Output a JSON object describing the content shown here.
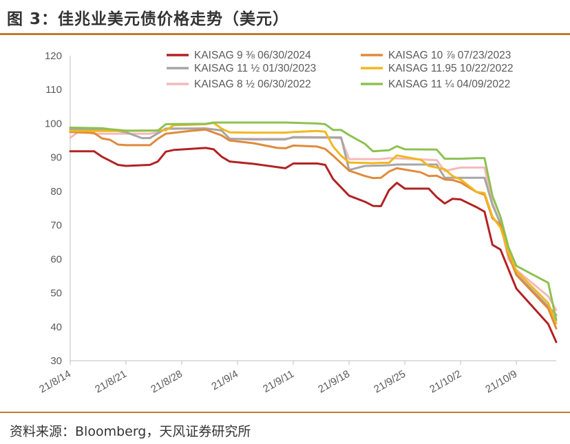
{
  "header": {
    "title": "图 3：佳兆业美元债价格走势（美元）"
  },
  "footer": {
    "source": "资料来源：Bloomberg，天风证券研究所"
  },
  "chart_data": {
    "type": "line",
    "title": "图 3：佳兆业美元债价格走势（美元）",
    "xlabel": "",
    "ylabel": "",
    "ylim": [
      30,
      120
    ],
    "yticks": [
      30,
      40,
      50,
      60,
      70,
      80,
      90,
      100,
      110,
      120
    ],
    "xlim": [
      "2021-08-14",
      "2021-10-14"
    ],
    "xtick_labels": [
      "21/8/14",
      "21/8/21",
      "21/8/28",
      "21/9/4",
      "21/9/11",
      "21/9/18",
      "21/9/25",
      "21/10/2",
      "21/10/9"
    ],
    "xtick_dates": [
      "2021-08-14",
      "2021-08-21",
      "2021-08-28",
      "2021-09-04",
      "2021-09-11",
      "2021-09-18",
      "2021-09-25",
      "2021-10-02",
      "2021-10-09"
    ],
    "grid": false,
    "legend": "top",
    "series": [
      {
        "name": "KAISAG 9 ⅜ 06/30/2024",
        "color": "#b22222",
        "points": [
          [
            "2021-08-14",
            91.8
          ],
          [
            "2021-08-17",
            91.8
          ],
          [
            "2021-08-18",
            90.2
          ],
          [
            "2021-08-20",
            87.8
          ],
          [
            "2021-08-21",
            87.5
          ],
          [
            "2021-08-24",
            87.8
          ],
          [
            "2021-08-25",
            88.8
          ],
          [
            "2021-08-26",
            91.7
          ],
          [
            "2021-08-27",
            92.2
          ],
          [
            "2021-08-31",
            92.8
          ],
          [
            "2021-09-01",
            92.4
          ],
          [
            "2021-09-02",
            90.2
          ],
          [
            "2021-09-03",
            88.8
          ],
          [
            "2021-09-06",
            88.1
          ],
          [
            "2021-09-10",
            86.8
          ],
          [
            "2021-09-11",
            88.2
          ],
          [
            "2021-09-14",
            88.2
          ],
          [
            "2021-09-15",
            87.8
          ],
          [
            "2021-09-16",
            83.6
          ],
          [
            "2021-09-18",
            78.7
          ],
          [
            "2021-09-20",
            76.9
          ],
          [
            "2021-09-21",
            75.7
          ],
          [
            "2021-09-22",
            75.6
          ],
          [
            "2021-09-23",
            80.3
          ],
          [
            "2021-09-24",
            82.5
          ],
          [
            "2021-09-25",
            80.8
          ],
          [
            "2021-09-28",
            80.8
          ],
          [
            "2021-09-29",
            78.3
          ],
          [
            "2021-09-30",
            76.4
          ],
          [
            "2021-10-01",
            77.8
          ],
          [
            "2021-10-02",
            77.6
          ],
          [
            "2021-10-04",
            75.3
          ],
          [
            "2021-10-05",
            74.0
          ],
          [
            "2021-10-06",
            64.2
          ],
          [
            "2021-10-07",
            62.8
          ],
          [
            "2021-10-08",
            57.0
          ],
          [
            "2021-10-09",
            51.3
          ],
          [
            "2021-10-13",
            40.8
          ],
          [
            "2021-10-14",
            35.5
          ]
        ]
      },
      {
        "name": "KAISAG 10 ⅞ 07/23/2023",
        "color": "#e08a3c",
        "points": [
          [
            "2021-08-14",
            97.5
          ],
          [
            "2021-08-17",
            97.2
          ],
          [
            "2021-08-18",
            95.6
          ],
          [
            "2021-08-19",
            95.2
          ],
          [
            "2021-08-20",
            93.8
          ],
          [
            "2021-08-21",
            93.6
          ],
          [
            "2021-08-24",
            93.6
          ],
          [
            "2021-08-25",
            95.5
          ],
          [
            "2021-08-26",
            97.0
          ],
          [
            "2021-08-29",
            97.8
          ],
          [
            "2021-08-31",
            98.2
          ],
          [
            "2021-09-02",
            96.5
          ],
          [
            "2021-09-03",
            95.0
          ],
          [
            "2021-09-06",
            94.2
          ],
          [
            "2021-09-09",
            92.8
          ],
          [
            "2021-09-10",
            92.7
          ],
          [
            "2021-09-11",
            93.5
          ],
          [
            "2021-09-14",
            93.2
          ],
          [
            "2021-09-15",
            92.5
          ],
          [
            "2021-09-16",
            90.5
          ],
          [
            "2021-09-18",
            86.1
          ],
          [
            "2021-09-20",
            84.5
          ],
          [
            "2021-09-21",
            83.9
          ],
          [
            "2021-09-22",
            84.0
          ],
          [
            "2021-09-23",
            85.8
          ],
          [
            "2021-09-24",
            86.8
          ],
          [
            "2021-09-27",
            85.6
          ],
          [
            "2021-09-28",
            84.5
          ],
          [
            "2021-09-29",
            84.6
          ],
          [
            "2021-09-30",
            83.5
          ],
          [
            "2021-10-01",
            83.3
          ],
          [
            "2021-10-02",
            82.6
          ],
          [
            "2021-10-04",
            79.8
          ],
          [
            "2021-10-05",
            79.0
          ],
          [
            "2021-10-06",
            72.0
          ],
          [
            "2021-10-07",
            70.2
          ],
          [
            "2021-10-08",
            61.2
          ],
          [
            "2021-10-09",
            55.3
          ],
          [
            "2021-10-13",
            45.4
          ],
          [
            "2021-10-14",
            39.5
          ]
        ]
      },
      {
        "name": "KAISAG 11 ½ 01/30/2023",
        "color": "#a6a6a6",
        "points": [
          [
            "2021-08-14",
            98.3
          ],
          [
            "2021-08-17",
            98.3
          ],
          [
            "2021-08-20",
            97.8
          ],
          [
            "2021-08-21",
            97.4
          ],
          [
            "2021-08-23",
            95.7
          ],
          [
            "2021-08-24",
            95.7
          ],
          [
            "2021-08-26",
            98.5
          ],
          [
            "2021-08-31",
            98.5
          ],
          [
            "2021-09-02",
            98.0
          ],
          [
            "2021-09-03",
            95.5
          ],
          [
            "2021-09-06",
            95.3
          ],
          [
            "2021-09-10",
            95.3
          ],
          [
            "2021-09-11",
            96.0
          ],
          [
            "2021-09-16",
            95.9
          ],
          [
            "2021-09-17",
            95.9
          ],
          [
            "2021-09-18",
            86.3
          ],
          [
            "2021-09-20",
            87.5
          ],
          [
            "2021-09-22",
            87.6
          ],
          [
            "2021-09-23",
            87.7
          ],
          [
            "2021-09-24",
            87.9
          ],
          [
            "2021-09-29",
            87.9
          ],
          [
            "2021-09-30",
            84.0
          ],
          [
            "2021-10-02",
            84.0
          ],
          [
            "2021-10-05",
            84.0
          ],
          [
            "2021-10-06",
            76.0
          ],
          [
            "2021-10-07",
            70.5
          ],
          [
            "2021-10-08",
            61.5
          ],
          [
            "2021-10-09",
            55.6
          ],
          [
            "2021-10-13",
            46.0
          ],
          [
            "2021-10-14",
            43.5
          ]
        ]
      },
      {
        "name": "KAISAG 11.95 10/22/2022",
        "color": "#f2b61f",
        "points": [
          [
            "2021-08-14",
            97.8
          ],
          [
            "2021-08-17",
            97.8
          ],
          [
            "2021-08-21",
            97.8
          ],
          [
            "2021-08-26",
            98.0
          ],
          [
            "2021-08-27",
            99.5
          ],
          [
            "2021-08-31",
            99.8
          ],
          [
            "2021-09-01",
            100.2
          ],
          [
            "2021-09-02",
            98.5
          ],
          [
            "2021-09-03",
            97.4
          ],
          [
            "2021-09-06",
            97.3
          ],
          [
            "2021-09-10",
            97.3
          ],
          [
            "2021-09-11",
            97.5
          ],
          [
            "2021-09-14",
            97.8
          ],
          [
            "2021-09-15",
            97.6
          ],
          [
            "2021-09-16",
            93.2
          ],
          [
            "2021-09-17",
            90.5
          ],
          [
            "2021-09-18",
            88.5
          ],
          [
            "2021-09-21",
            88.3
          ],
          [
            "2021-09-22",
            88.4
          ],
          [
            "2021-09-23",
            88.4
          ],
          [
            "2021-09-24",
            90.6
          ],
          [
            "2021-09-27",
            89.3
          ],
          [
            "2021-09-28",
            87.5
          ],
          [
            "2021-09-30",
            86.5
          ],
          [
            "2021-10-01",
            84.5
          ],
          [
            "2021-10-02",
            83.5
          ],
          [
            "2021-10-04",
            79.8
          ],
          [
            "2021-10-05",
            79.5
          ],
          [
            "2021-10-06",
            72.5
          ],
          [
            "2021-10-07",
            69.3
          ],
          [
            "2021-10-08",
            62.0
          ],
          [
            "2021-10-09",
            56.5
          ],
          [
            "2021-10-13",
            47.0
          ],
          [
            "2021-10-14",
            41.0
          ]
        ]
      },
      {
        "name": "KAISAG 8 ½ 06/30/2022",
        "color": "#f4b9bb",
        "points": [
          [
            "2021-08-14",
            95.8
          ],
          [
            "2021-08-15",
            97.5
          ],
          [
            "2021-08-16",
            97.5
          ],
          [
            "2021-08-17",
            97.0
          ],
          [
            "2021-08-21",
            97.0
          ],
          [
            "2021-08-24",
            97.0
          ],
          [
            "2021-08-25",
            97.4
          ],
          [
            "2021-08-26",
            98.4
          ],
          [
            "2021-08-31",
            98.6
          ],
          [
            "2021-09-02",
            97.9
          ],
          [
            "2021-09-03",
            95.5
          ],
          [
            "2021-09-06",
            95.5
          ],
          [
            "2021-09-10",
            95.5
          ],
          [
            "2021-09-11",
            95.8
          ],
          [
            "2021-09-16",
            95.8
          ],
          [
            "2021-09-17",
            95.6
          ],
          [
            "2021-09-18",
            89.5
          ],
          [
            "2021-09-20",
            89.5
          ],
          [
            "2021-09-22",
            89.5
          ],
          [
            "2021-09-23",
            89.8
          ],
          [
            "2021-09-24",
            89.7
          ],
          [
            "2021-09-28",
            89.3
          ],
          [
            "2021-09-29",
            89.2
          ],
          [
            "2021-09-30",
            86.0
          ],
          [
            "2021-10-01",
            86.5
          ],
          [
            "2021-10-02",
            87.0
          ],
          [
            "2021-10-05",
            87.0
          ],
          [
            "2021-10-06",
            76.5
          ],
          [
            "2021-10-07",
            70.5
          ],
          [
            "2021-10-08",
            60.0
          ],
          [
            "2021-10-09",
            56.8
          ],
          [
            "2021-10-13",
            49.0
          ],
          [
            "2021-10-14",
            45.0
          ]
        ]
      },
      {
        "name": "KAISAG 11 ¼ 04/09/2022",
        "color": "#8cc152",
        "points": [
          [
            "2021-08-14",
            98.8
          ],
          [
            "2021-08-18",
            98.6
          ],
          [
            "2021-08-19",
            98.3
          ],
          [
            "2021-08-21",
            97.9
          ],
          [
            "2021-08-25",
            97.9
          ],
          [
            "2021-08-26",
            99.8
          ],
          [
            "2021-08-31",
            99.9
          ],
          [
            "2021-09-01",
            100.3
          ],
          [
            "2021-09-10",
            100.3
          ],
          [
            "2021-09-14",
            100.0
          ],
          [
            "2021-09-15",
            99.8
          ],
          [
            "2021-09-16",
            98.1
          ],
          [
            "2021-09-17",
            98.1
          ],
          [
            "2021-09-18",
            96.6
          ],
          [
            "2021-09-20",
            94.0
          ],
          [
            "2021-09-21",
            91.8
          ],
          [
            "2021-09-23",
            92.1
          ],
          [
            "2021-09-24",
            93.3
          ],
          [
            "2021-09-25",
            92.4
          ],
          [
            "2021-09-29",
            92.3
          ],
          [
            "2021-09-30",
            89.6
          ],
          [
            "2021-10-02",
            89.6
          ],
          [
            "2021-10-04",
            89.8
          ],
          [
            "2021-10-05",
            89.8
          ],
          [
            "2021-10-06",
            78.6
          ],
          [
            "2021-10-07",
            72.5
          ],
          [
            "2021-10-08",
            63.5
          ],
          [
            "2021-10-09",
            58.0
          ],
          [
            "2021-10-13",
            53.0
          ],
          [
            "2021-10-14",
            42.0
          ]
        ]
      }
    ]
  }
}
